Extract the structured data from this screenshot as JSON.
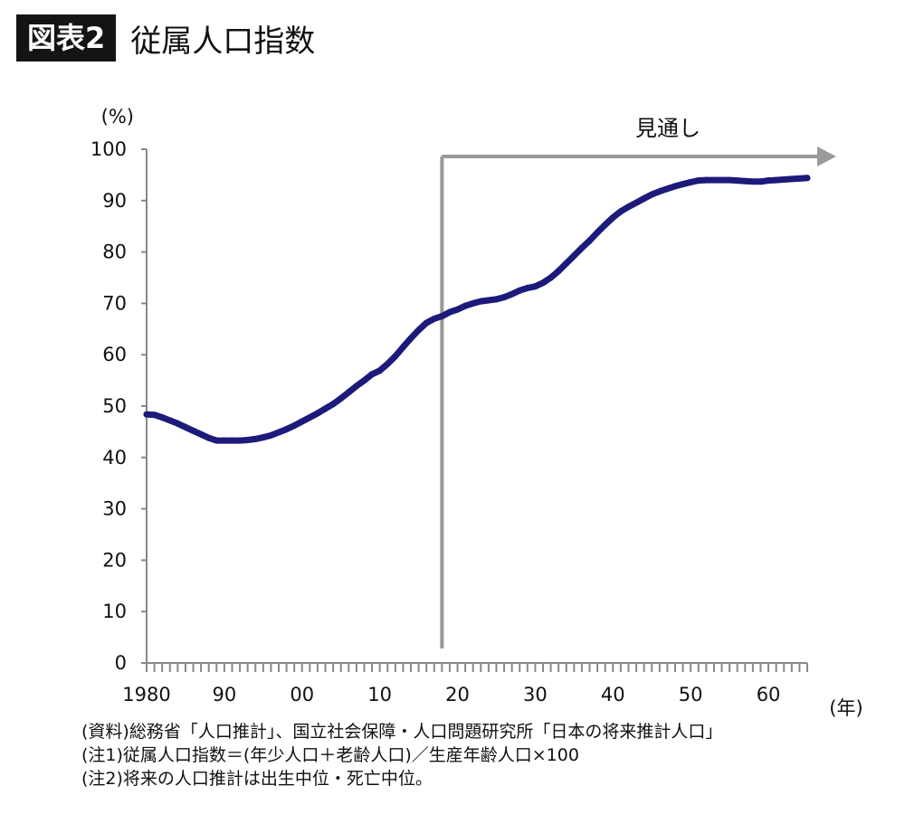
{
  "header": {
    "badge": "図表2",
    "title": "従属人口指数"
  },
  "chart_data": {
    "type": "line",
    "title": "従属人口指数",
    "ylabel": "(%)",
    "xlabel": "(年)",
    "ylim": [
      0,
      100
    ],
    "yticks": [
      0,
      10,
      20,
      30,
      40,
      50,
      60,
      70,
      80,
      90,
      100
    ],
    "xlim": [
      1980,
      2065
    ],
    "xticks": [
      {
        "year": 1980,
        "label": "1980"
      },
      {
        "year": 1990,
        "label": "90"
      },
      {
        "year": 2000,
        "label": "00"
      },
      {
        "year": 2010,
        "label": "10"
      },
      {
        "year": 2020,
        "label": "20"
      },
      {
        "year": 2030,
        "label": "30"
      },
      {
        "year": 2040,
        "label": "40"
      },
      {
        "year": 2050,
        "label": "50"
      },
      {
        "year": 2060,
        "label": "60"
      }
    ],
    "forecast": {
      "label": "見通し",
      "start_year": 2018
    },
    "line_color": "#1c1a7a",
    "forecast_color": "#999999",
    "series": [
      {
        "x": [
          1980,
          1981,
          1982,
          1983,
          1984,
          1985,
          1986,
          1987,
          1988,
          1989,
          1990,
          1991,
          1992,
          1993,
          1994,
          1995,
          1996,
          1997,
          1998,
          1999,
          2000,
          2001,
          2002,
          2003,
          2004,
          2005,
          2006,
          2007,
          2008,
          2009,
          2010,
          2011,
          2012,
          2013,
          2014,
          2015,
          2016,
          2017,
          2018,
          2019,
          2020,
          2021,
          2022,
          2023,
          2024,
          2025,
          2026,
          2027,
          2028,
          2029,
          2030,
          2031,
          2032,
          2033,
          2034,
          2035,
          2036,
          2037,
          2038,
          2039,
          2040,
          2041,
          2042,
          2043,
          2044,
          2045,
          2046,
          2047,
          2048,
          2049,
          2050,
          2051,
          2052,
          2053,
          2054,
          2055,
          2056,
          2057,
          2058,
          2059,
          2060,
          2061,
          2062,
          2063,
          2064,
          2065
        ],
        "y": [
          48.4,
          48.3,
          47.8,
          47.2,
          46.6,
          45.9,
          45.2,
          44.5,
          43.8,
          43.3,
          43.3,
          43.3,
          43.3,
          43.4,
          43.6,
          43.9,
          44.3,
          44.9,
          45.5,
          46.2,
          47.0,
          47.8,
          48.6,
          49.5,
          50.4,
          51.5,
          52.7,
          53.9,
          55.0,
          56.2,
          56.9,
          58.2,
          59.7,
          61.5,
          63.2,
          64.8,
          66.2,
          67.0,
          67.5,
          68.3,
          68.8,
          69.5,
          70.0,
          70.4,
          70.6,
          70.8,
          71.2,
          71.8,
          72.5,
          73.0,
          73.3,
          74.0,
          75.0,
          76.3,
          77.8,
          79.3,
          80.8,
          82.2,
          83.8,
          85.3,
          86.7,
          87.9,
          88.8,
          89.6,
          90.4,
          91.2,
          91.8,
          92.3,
          92.8,
          93.2,
          93.6,
          93.9,
          94.0,
          94.0,
          94.0,
          94.0,
          93.9,
          93.8,
          93.7,
          93.7,
          93.9,
          94.0,
          94.1,
          94.2,
          94.3,
          94.4
        ]
      }
    ]
  },
  "notes": [
    "(資料)総務省「人口推計」、国立社会保障・人口問題研究所「日本の将来推計人口」",
    "(注1)従属人口指数＝(年少人口＋老齢人口)／生産年齢人口×100",
    "(注2)将来の人口推計は出生中位・死亡中位。"
  ]
}
